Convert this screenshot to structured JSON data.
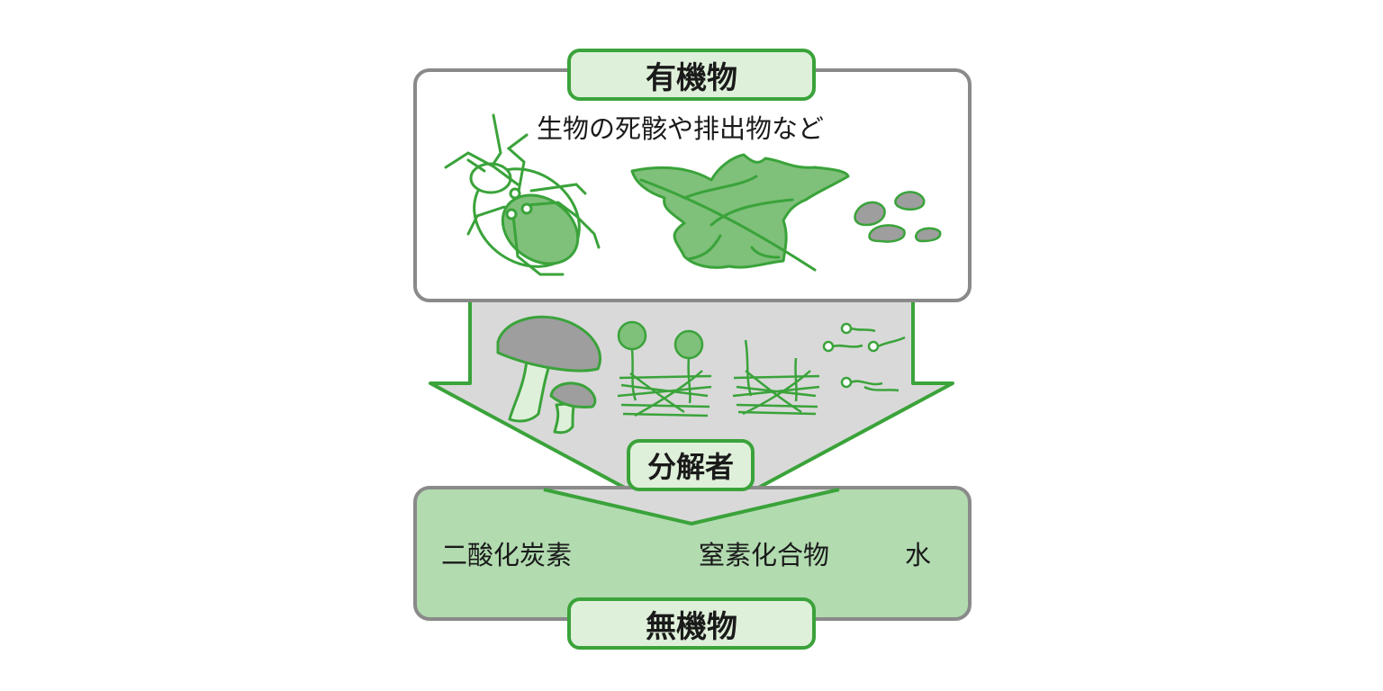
{
  "organic": {
    "title": "有機物",
    "description": "生物の死骸や排出物など"
  },
  "decomposer": {
    "title": "分解者"
  },
  "inorganic": {
    "title": "無機物",
    "items": [
      "二酸化炭素",
      "窒素化合物",
      "水"
    ]
  },
  "colors": {
    "green_border": "#3aa33a",
    "light_green": "#b2dbb0",
    "pale_green_label": "#dff0da",
    "leaf_green": "#7fc07a",
    "gray_fill": "#d9d9d9",
    "dark_gray": "#9e9e9e",
    "frame_gray": "#8a8a8a"
  }
}
